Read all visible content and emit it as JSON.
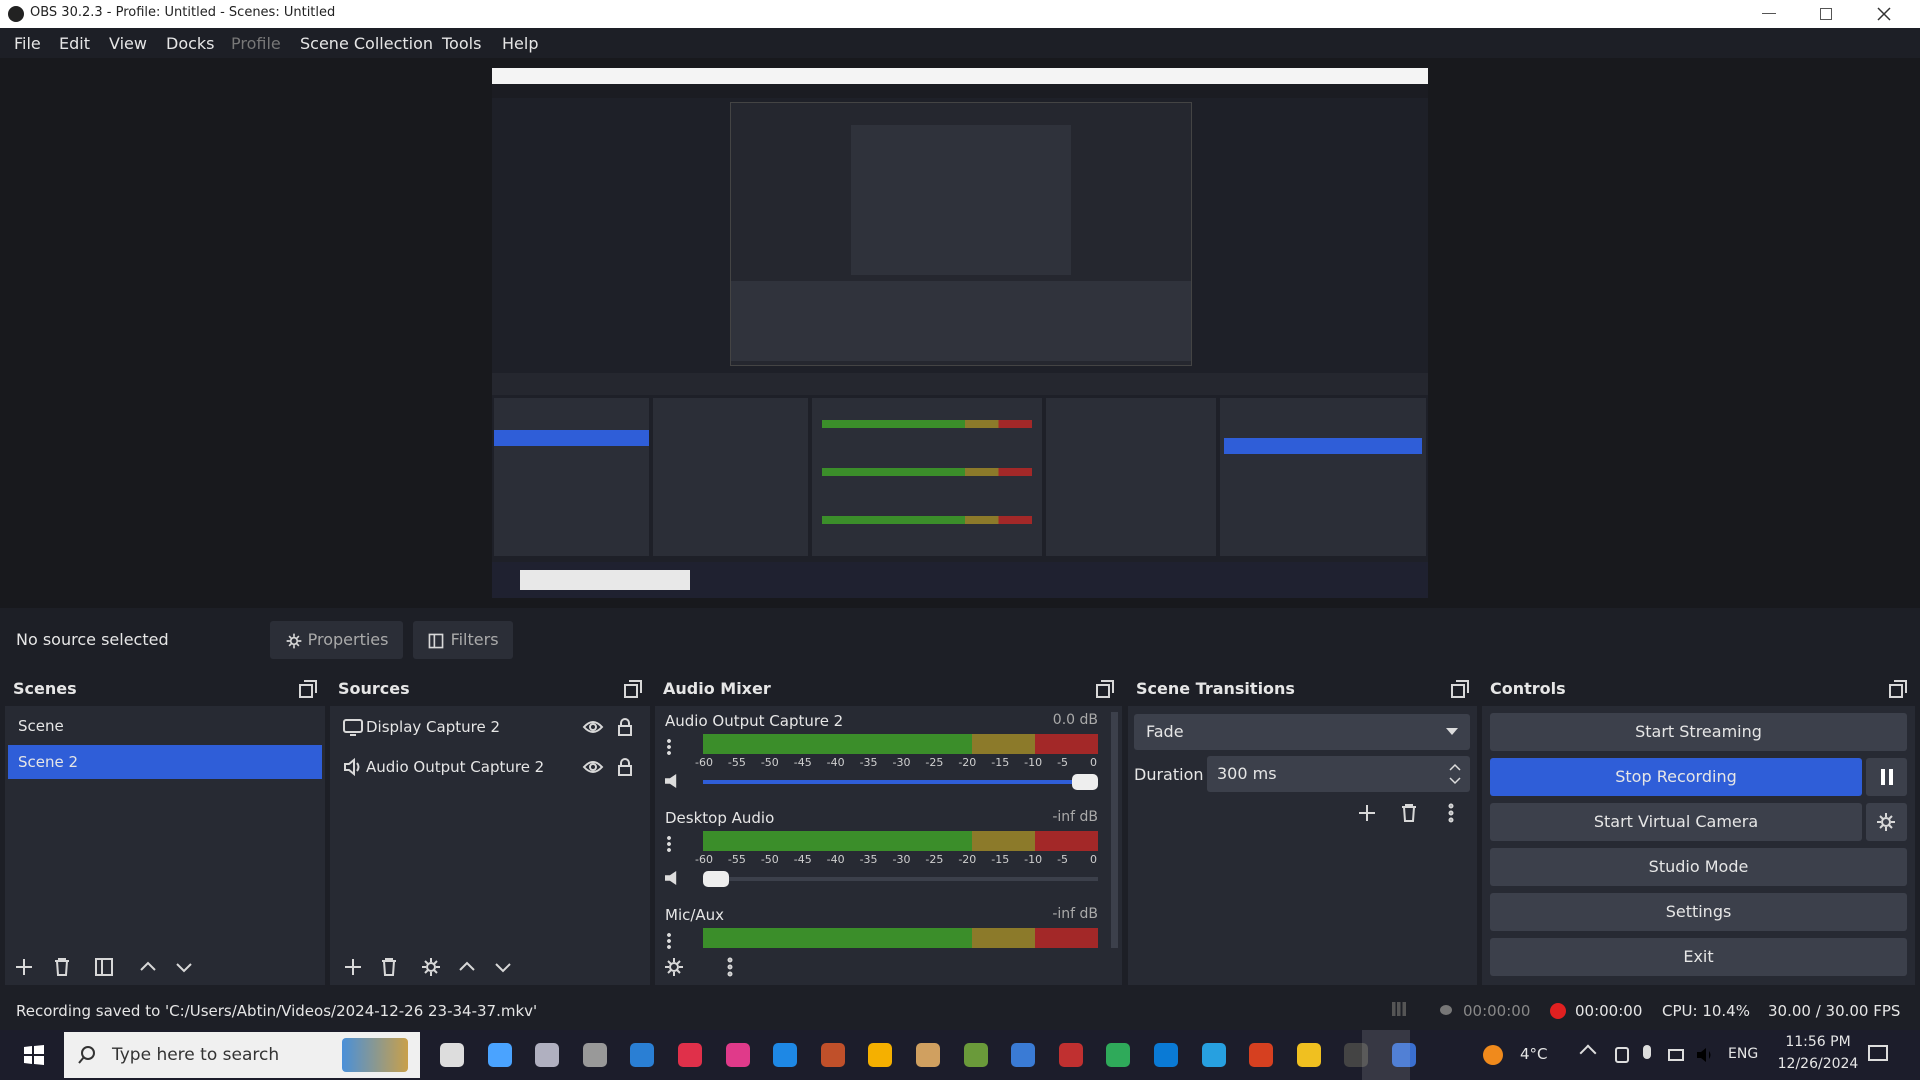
{
  "window": {
    "title": "OBS 30.2.3 - Profile: Untitled - Scenes: Untitled"
  },
  "menu": [
    "File",
    "Edit",
    "View",
    "Docks",
    "Profile",
    "Scene Collection",
    "Tools",
    "Help"
  ],
  "source_bar": {
    "status": "No source selected",
    "properties": "Properties",
    "filters": "Filters"
  },
  "scenes": {
    "title": "Scenes",
    "items": [
      "Scene",
      "Scene 2"
    ]
  },
  "sources": {
    "title": "Sources",
    "items": [
      "Display Capture 2",
      "Audio Output Capture 2"
    ]
  },
  "audio_mixer": {
    "title": "Audio Mixer",
    "channels": [
      {
        "name": "Audio Output Capture 2",
        "level": "0.0 dB"
      },
      {
        "name": "Desktop Audio",
        "level": "-inf dB"
      },
      {
        "name": "Mic/Aux",
        "level": "-inf dB"
      }
    ],
    "scale": [
      "-60",
      "-55",
      "-50",
      "-45",
      "-40",
      "-35",
      "-30",
      "-25",
      "-20",
      "-15",
      "-10",
      "-5",
      "0"
    ]
  },
  "scene_transitions": {
    "title": "Scene Transitions",
    "transition": "Fade",
    "duration_label": "Duration",
    "duration": "300 ms"
  },
  "controls": {
    "title": "Controls",
    "buttons": [
      "Start Streaming",
      "Stop Recording",
      "Start Virtual Camera",
      "Studio Mode",
      "Settings",
      "Exit"
    ]
  },
  "status_bar": {
    "message": "Recording saved to 'C:/Users/Abtin/Videos/2024-12-26 23-34-37.mkv'",
    "stream_time": "00:00:00",
    "record_time": "00:00:00",
    "cpu": "CPU: 10.4%",
    "fps": "30.00 / 30.00 FPS"
  },
  "taskbar": {
    "search": "Type here to search",
    "weather": "4°C",
    "language": "ENG",
    "time": "11:56 PM",
    "date": "12/26/2024"
  }
}
